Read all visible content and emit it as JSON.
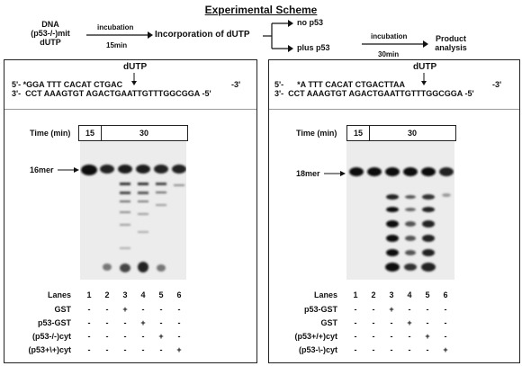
{
  "scheme": {
    "title": "Experimental Scheme",
    "dna_lines": [
      "DNA",
      "(p53-/-)mit",
      "dUTP"
    ],
    "incubation1_label": "incubation",
    "incubation1_time": "15min",
    "incorporation_label": "Incorporation of dUTP",
    "branch_no_p53": "no p53",
    "branch_plus_p53": "plus p53",
    "incubation2_label": "incubation",
    "incubation2_time": "30min",
    "product_lines": [
      "Product",
      "analysis"
    ]
  },
  "left_panel": {
    "dutp_label": "dUTP",
    "seq_top": "5'- *GGA TTT CACAT CTGAC",
    "seq_top_end": "-3'",
    "seq_bottom": "3'-  CCT AAAGTGT AGACTGAATTGTTTGGCGGA -5'",
    "time_label": "Time (min)",
    "time_15": "15",
    "time_30": "30",
    "marker_label": "16mer",
    "lanes_label": "Lanes",
    "lanes": [
      "1",
      "2",
      "3",
      "4",
      "5",
      "6"
    ],
    "rows": [
      {
        "label": "GST",
        "signs": [
          "-",
          "-",
          "+",
          "-",
          "-",
          "-"
        ]
      },
      {
        "label": "p53-GST",
        "signs": [
          "-",
          "-",
          "-",
          "+",
          "-",
          "-"
        ]
      },
      {
        "label": "(p53-/-)cyt",
        "signs": [
          "-",
          "-",
          "-",
          "-",
          "+",
          "-"
        ]
      },
      {
        "label": "(p53+\\+)cyt",
        "signs": [
          "-",
          "-",
          "-",
          "-",
          "-",
          "+"
        ]
      }
    ]
  },
  "right_panel": {
    "dutp_label": "dUTP",
    "seq_top": "5'-      *A TTT CACAT CTGACTTAA",
    "seq_top_end": "-3'",
    "seq_bottom": "3'-  CCT AAAGTGT AGACTGAATTGTTTGGCGGA -5'",
    "time_label": "Time (min)",
    "time_15": "15",
    "time_30": "30",
    "marker_label": "18mer",
    "lanes_label": "Lanes",
    "lanes": [
      "1",
      "2",
      "3",
      "4",
      "5",
      "6"
    ],
    "rows": [
      {
        "label": "p53-GST",
        "signs": [
          "-",
          "-",
          "+",
          "-",
          "-",
          "-"
        ]
      },
      {
        "label": "GST",
        "signs": [
          "-",
          "-",
          "-",
          "+",
          "-",
          "-"
        ]
      },
      {
        "label": "(p53+/+)cyt",
        "signs": [
          "-",
          "-",
          "-",
          "-",
          "+",
          "-"
        ]
      },
      {
        "label": "(p53-\\-)cyt",
        "signs": [
          "-",
          "-",
          "-",
          "-",
          "-",
          "+"
        ]
      }
    ]
  }
}
